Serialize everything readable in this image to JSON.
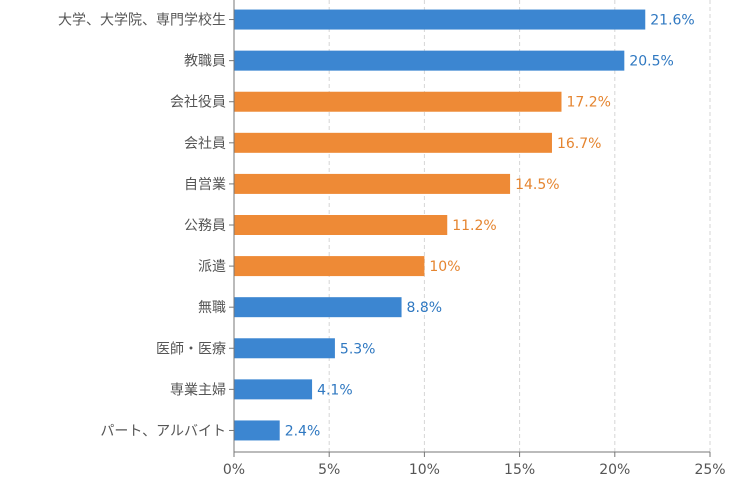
{
  "chart_data": {
    "type": "bar",
    "orientation": "horizontal",
    "title": "",
    "xlabel": "",
    "ylabel": "",
    "xlim": [
      0,
      25
    ],
    "x_ticks": [
      "0%",
      "5%",
      "10%",
      "15%",
      "20%",
      "25%"
    ],
    "grid": "vertical dashed",
    "categories": [
      "大学、大学院、専門学校生",
      "教職員",
      "会社役員",
      "会社員",
      "自営業",
      "公務員",
      "派遣",
      "無職",
      "医師・医療",
      "専業主婦",
      "パート、アルバイト"
    ],
    "values": [
      21.6,
      20.5,
      17.2,
      16.7,
      14.5,
      11.2,
      10,
      8.8,
      5.3,
      4.1,
      2.4
    ],
    "value_labels": [
      "21.6%",
      "20.5%",
      "17.2%",
      "16.7%",
      "14.5%",
      "11.2%",
      "10%",
      "8.8%",
      "5.3%",
      "4.1%",
      "2.4%"
    ],
    "bar_colors": [
      "#3c86d1",
      "#3c86d1",
      "#ee8a36",
      "#ee8a36",
      "#ee8a36",
      "#ee8a36",
      "#ee8a36",
      "#3c86d1",
      "#3c86d1",
      "#3c86d1",
      "#3c86d1"
    ],
    "label_colors": [
      "#2f78c1",
      "#2f78c1",
      "#e58530",
      "#e58530",
      "#e58530",
      "#e58530",
      "#e58530",
      "#2f78c1",
      "#2f78c1",
      "#2f78c1",
      "#2f78c1"
    ]
  }
}
